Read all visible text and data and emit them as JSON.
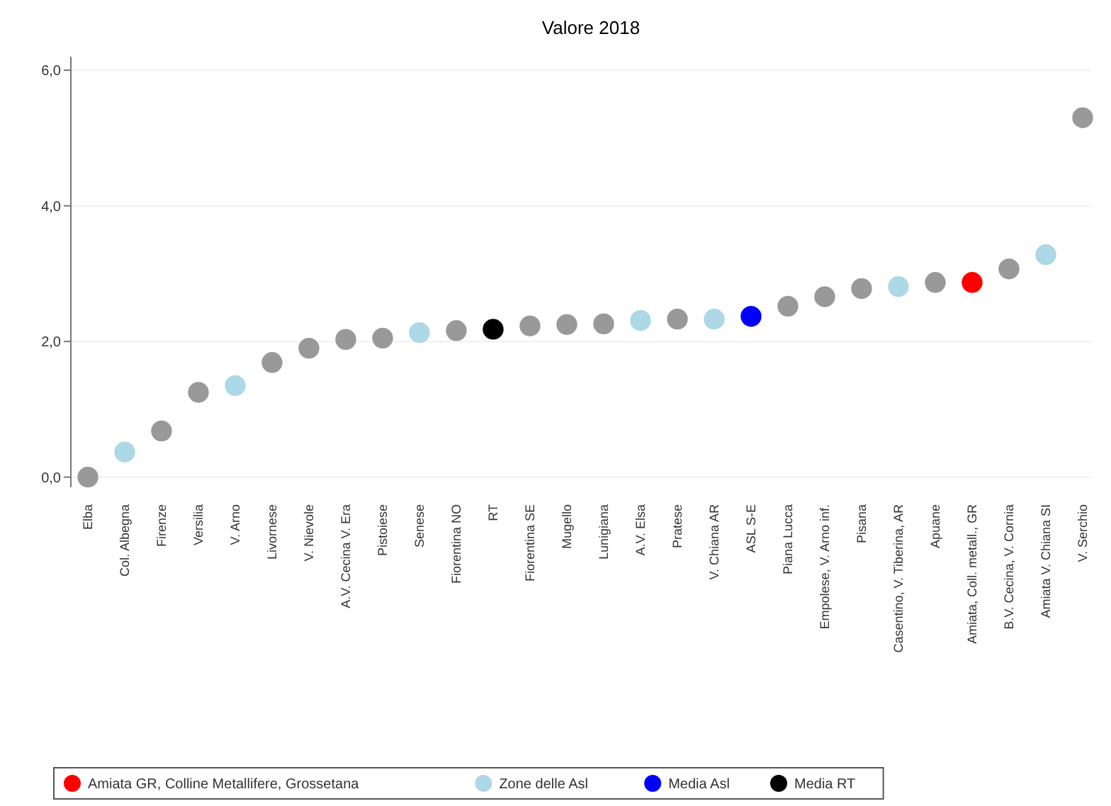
{
  "chart_data": {
    "type": "scatter",
    "title": "Valore 2018",
    "categories": [
      "Elba",
      "Col. Albegna",
      "Firenze",
      "Versilia",
      "V. Arno",
      "Livornese",
      "V. Nievole",
      "A.V. Cecina V. Era",
      "Pistoiese",
      "Senese",
      "Fiorentina NO",
      "RT",
      "Fiorentina SE",
      "Mugello",
      "Lunigiana",
      "A.V. Elsa",
      "Pratese",
      "V. Chiana AR",
      "ASL S-E",
      "Piana Lucca",
      "Empolese, V. Arno inf.",
      "Pisana",
      "Casentino, V. Tiberina, AR",
      "Apuane",
      "Amiata, Coll. metall., GR",
      "B.V. Cecina, V. Cornia",
      "Amiata V. Chiana SI",
      "V. Serchio"
    ],
    "series": [
      {
        "color": "#999999",
        "values": [
          0.0,
          null,
          0.68,
          1.25,
          null,
          1.69,
          1.9,
          2.03,
          2.05,
          null,
          2.16,
          null,
          2.23,
          2.25,
          2.26,
          null,
          2.33,
          null,
          null,
          2.52,
          2.66,
          2.78,
          null,
          2.87,
          null,
          3.07,
          null,
          5.3
        ]
      },
      {
        "name": "Amiata GR, Colline Metallifere, Grossetana",
        "color": "#ff0000",
        "values": [
          null,
          null,
          null,
          null,
          null,
          null,
          null,
          null,
          null,
          null,
          null,
          null,
          null,
          null,
          null,
          null,
          null,
          null,
          null,
          null,
          null,
          null,
          null,
          null,
          2.87,
          null,
          null,
          null
        ]
      },
      {
        "name": "Zone delle Asl",
        "color": "#add8e6",
        "values": [
          null,
          0.37,
          null,
          null,
          1.35,
          null,
          null,
          null,
          null,
          2.13,
          null,
          null,
          null,
          null,
          null,
          2.31,
          null,
          2.33,
          null,
          null,
          null,
          null,
          2.81,
          null,
          null,
          null,
          3.28,
          null
        ]
      },
      {
        "name": "Media Asl",
        "color": "#0000ff",
        "values": [
          null,
          null,
          null,
          null,
          null,
          null,
          null,
          null,
          null,
          null,
          null,
          null,
          null,
          null,
          null,
          null,
          null,
          null,
          2.37,
          null,
          null,
          null,
          null,
          null,
          null,
          null,
          null,
          null
        ]
      },
      {
        "name": "Media RT",
        "color": "#000000",
        "values": [
          null,
          null,
          null,
          null,
          null,
          null,
          null,
          null,
          null,
          null,
          null,
          2.18,
          null,
          null,
          null,
          null,
          null,
          null,
          null,
          null,
          null,
          null,
          null,
          null,
          null,
          null,
          null,
          null
        ]
      }
    ],
    "ylim": [
      -0.15,
      6.2
    ],
    "yticks": [
      {
        "value": 0,
        "label": "0,0"
      },
      {
        "value": 2,
        "label": "2,0"
      },
      {
        "value": 4,
        "label": "4,0"
      },
      {
        "value": 6,
        "label": "6,0"
      }
    ],
    "grid": "y",
    "legend": "bottom",
    "marker": "circle"
  }
}
